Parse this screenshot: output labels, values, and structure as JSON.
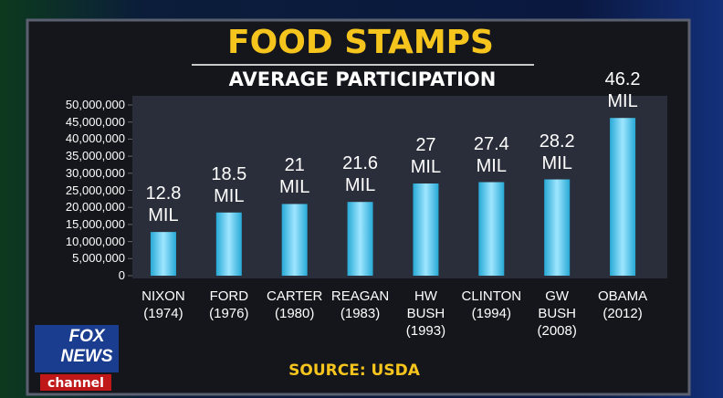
{
  "chart_data": {
    "type": "bar",
    "title": "FOOD STAMPS",
    "subtitle": "AVERAGE PARTICIPATION",
    "source": "SOURCE: USDA",
    "categories": [
      "NIXON\n(1974)",
      "FORD\n(1976)",
      "CARTER\n(1980)",
      "REAGAN\n(1983)",
      "HW\nBUSH\n(1993)",
      "CLINTON\n(1994)",
      "GW\nBUSH\n(2008)",
      "OBAMA\n(2012)"
    ],
    "values": [
      12800000,
      18500000,
      21000000,
      21600000,
      27000000,
      27400000,
      28200000,
      46200000
    ],
    "value_labels": [
      "12.8\nMIL",
      "18.5\nMIL",
      "21\nMIL",
      "21.6\nMIL",
      "27\nMIL",
      "27.4\nMIL",
      "28.2\nMIL",
      "46.2\nMIL"
    ],
    "color": "#27a9d6",
    "ylim": [
      0,
      50000000
    ],
    "yticks": [
      0,
      {
        "value": 5000000,
        "label": "5,000,000"
      },
      {
        "value": 10000000,
        "label": "10,000,000"
      },
      {
        "value": 15000000,
        "label": "15,000,000"
      },
      {
        "value": 20000000,
        "label": "20,000,000"
      },
      {
        "value": 25000000,
        "label": "25,000,000"
      },
      {
        "value": 30000000,
        "label": "30,000,000"
      },
      {
        "value": 35000000,
        "label": "35,000,000"
      },
      {
        "value": 40000000,
        "label": "40,000,000"
      },
      {
        "value": 45000000,
        "label": "45,000,000"
      },
      {
        "value": 50000000,
        "label": "50,000,000"
      }
    ]
  },
  "logo": {
    "brand": "FOX\nNEWS",
    "network": "channel"
  }
}
